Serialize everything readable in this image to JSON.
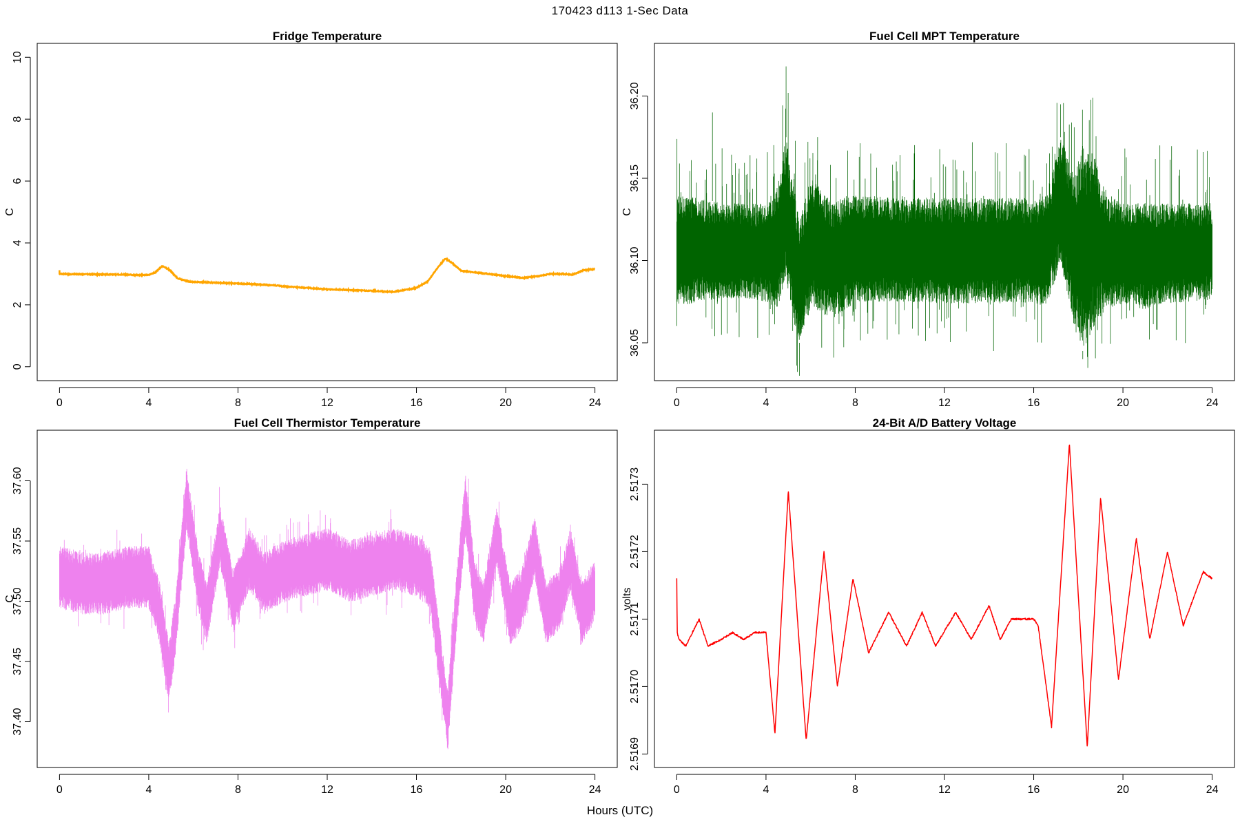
{
  "page": {
    "title": "170423   d113   1-Sec Data",
    "x_axis_label": "Hours (UTC)"
  },
  "chart_data": [
    {
      "id": "fridge",
      "type": "line",
      "title": "Fridge Temperature",
      "ylabel": "C",
      "xlabel": "Hours (UTC)",
      "color": "#FFA500",
      "xlim": [
        -1,
        25
      ],
      "ylim": [
        -0.45,
        10.45
      ],
      "xticks": [
        0,
        4,
        8,
        12,
        16,
        20,
        24
      ],
      "yticks": [
        0,
        2,
        4,
        6,
        8,
        10
      ],
      "ytick_labels": [
        "0",
        "2",
        "4",
        "6",
        "8",
        "10"
      ],
      "noise": 0.03,
      "x": [
        0,
        0.5,
        1,
        2,
        3,
        3.5,
        4,
        4.3,
        4.6,
        4.9,
        5.3,
        5.8,
        6.5,
        8,
        9.7,
        10,
        11,
        12,
        13,
        14,
        15,
        16,
        16.5,
        17,
        17.3,
        17.6,
        18,
        19,
        20,
        20.8,
        21.5,
        22,
        22.5,
        23,
        23.5,
        24
      ],
      "values": [
        3.0,
        2.99,
        2.99,
        2.98,
        2.98,
        2.96,
        2.97,
        3.05,
        3.25,
        3.15,
        2.85,
        2.75,
        2.73,
        2.69,
        2.63,
        2.6,
        2.55,
        2.5,
        2.48,
        2.45,
        2.42,
        2.55,
        2.75,
        3.25,
        3.5,
        3.35,
        3.1,
        3.02,
        2.93,
        2.87,
        2.93,
        3.0,
        3.0,
        2.98,
        3.12,
        3.15
      ]
    },
    {
      "id": "fuel-cell-mpt",
      "type": "line",
      "title": "Fuel Cell MPT Temperature",
      "ylabel": "C",
      "xlabel": "Hours (UTC)",
      "color": "#006400",
      "xlim": [
        -1,
        25
      ],
      "ylim": [
        36.027,
        36.232
      ],
      "xticks": [
        0,
        4,
        8,
        12,
        16,
        20,
        24
      ],
      "yticks": [
        36.05,
        36.1,
        36.15,
        36.2
      ],
      "ytick_labels": [
        "36.05",
        "36.10",
        "36.15",
        "36.20"
      ],
      "band_x": [
        0,
        1,
        2,
        3,
        4,
        4.5,
        4.9,
        5.2,
        5.5,
        6.0,
        6.4,
        7.0,
        7.6,
        8,
        10,
        12,
        14,
        16,
        16.6,
        17.2,
        17.5,
        17.8,
        18.2,
        18.7,
        19.3,
        20,
        21,
        22,
        23,
        24
      ],
      "band_low": [
        36.072,
        36.075,
        36.077,
        36.077,
        36.075,
        36.07,
        36.09,
        36.065,
        36.05,
        36.07,
        36.068,
        36.065,
        36.07,
        36.075,
        36.075,
        36.074,
        36.074,
        36.074,
        36.072,
        36.098,
        36.08,
        36.06,
        36.045,
        36.06,
        36.07,
        36.074,
        36.07,
        36.074,
        36.075,
        36.076
      ],
      "band_high": [
        36.14,
        36.138,
        36.135,
        36.135,
        36.135,
        36.145,
        36.175,
        36.15,
        36.125,
        36.15,
        36.145,
        36.135,
        36.14,
        36.14,
        36.138,
        36.138,
        36.138,
        36.138,
        36.14,
        36.175,
        36.165,
        36.15,
        36.17,
        36.165,
        36.14,
        36.135,
        36.135,
        36.135,
        36.135,
        36.135
      ],
      "spikes_min": 36.03,
      "spikes_max": 36.22
    },
    {
      "id": "fuel-cell-thermistor",
      "type": "line",
      "title": "Fuel Cell Thermistor Temperature",
      "ylabel": "C",
      "xlabel": "Hours (UTC)",
      "color": "#EE82EE",
      "xlim": [
        -1,
        25
      ],
      "ylim": [
        37.362,
        37.642
      ],
      "xticks": [
        0,
        4,
        8,
        12,
        16,
        20,
        24
      ],
      "yticks": [
        37.4,
        37.45,
        37.5,
        37.55,
        37.6
      ],
      "ytick_labels": [
        "37.40",
        "37.45",
        "37.50",
        "37.55",
        "37.60"
      ],
      "half_width": 0.026,
      "x": [
        0,
        1,
        2,
        3,
        4,
        4.5,
        4.9,
        5.2,
        5.7,
        6.2,
        6.6,
        7.2,
        7.8,
        8.5,
        9.2,
        10,
        11,
        12,
        13,
        14,
        15,
        16,
        16.6,
        17.0,
        17.4,
        17.8,
        18.2,
        18.6,
        19.0,
        19.6,
        20.2,
        20.7,
        21.3,
        21.8,
        22.4,
        22.9,
        23.4,
        24
      ],
      "values": [
        37.52,
        37.515,
        37.515,
        37.52,
        37.52,
        37.49,
        37.44,
        37.48,
        37.585,
        37.52,
        37.49,
        37.555,
        37.5,
        37.535,
        37.515,
        37.525,
        37.53,
        37.535,
        37.525,
        37.53,
        37.535,
        37.53,
        37.52,
        37.46,
        37.4,
        37.5,
        37.58,
        37.51,
        37.49,
        37.555,
        37.49,
        37.5,
        37.545,
        37.49,
        37.5,
        37.535,
        37.49,
        37.51
      ]
    },
    {
      "id": "battery-voltage",
      "type": "line",
      "title": "24-Bit A/D Battery Voltage",
      "ylabel": "volts",
      "xlabel": "Hours (UTC)",
      "color": "#FF0000",
      "xlim": [
        -1,
        25
      ],
      "ylim": [
        2.51688,
        2.51738
      ],
      "xticks": [
        0,
        4,
        8,
        12,
        16,
        20,
        24
      ],
      "yticks": [
        2.5169,
        2.517,
        2.5171,
        2.5172,
        2.5173
      ],
      "ytick_labels": [
        "2.5169",
        "2.5170",
        "2.5171",
        "2.5172",
        "2.5173"
      ],
      "noise": 2.5e-06,
      "x": [
        0,
        0.02,
        0.1,
        0.4,
        1.0,
        1.4,
        2.0,
        2.5,
        3.0,
        3.5,
        4.0,
        4.4,
        5.0,
        5.8,
        6.6,
        7.2,
        7.9,
        8.6,
        9.5,
        10.3,
        11.0,
        11.6,
        12.5,
        13.2,
        14.0,
        14.5,
        15.0,
        15.5,
        16.0,
        16.2,
        16.8,
        17.6,
        18.4,
        19.0,
        19.8,
        20.6,
        21.2,
        22.0,
        22.7,
        23.6,
        24
      ],
      "values": [
        2.51716,
        2.51708,
        2.51707,
        2.51706,
        2.5171,
        2.51706,
        2.51707,
        2.51708,
        2.51707,
        2.51708,
        2.51708,
        2.51693,
        2.51729,
        2.51692,
        2.5172,
        2.517,
        2.51716,
        2.51705,
        2.51711,
        2.51706,
        2.51711,
        2.51706,
        2.51711,
        2.51707,
        2.51712,
        2.51707,
        2.5171,
        2.5171,
        2.5171,
        2.51709,
        2.51694,
        2.51736,
        2.51691,
        2.51728,
        2.51701,
        2.51722,
        2.51707,
        2.5172,
        2.51709,
        2.51717,
        2.51716
      ]
    }
  ]
}
